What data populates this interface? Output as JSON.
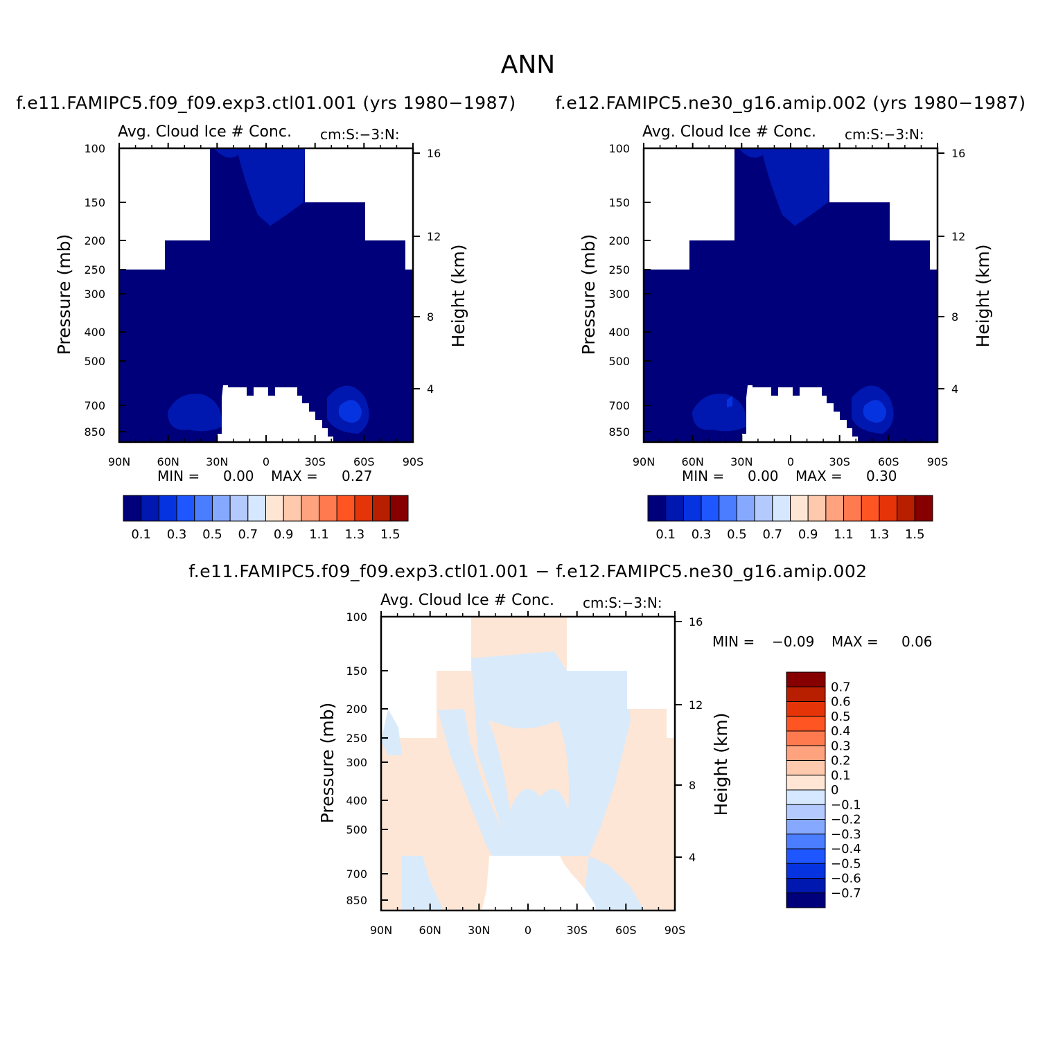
{
  "title": "ANN",
  "colors": {
    "white": "#ffffff",
    "blue_scale": [
      "#00007a",
      "#0018b0",
      "#0633e0",
      "#1e57ff",
      "#4a7dff",
      "#86a9ff",
      "#b4caff",
      "#d6e8ff"
    ],
    "red_scale": [
      "#ffe6d4",
      "#ffc9ad",
      "#ffa27e",
      "#ff7a4f",
      "#ff5523",
      "#e43408",
      "#b81e00",
      "#860000"
    ],
    "diff_pos": "#fde6d6",
    "diff_neg": "#d9eafb"
  },
  "chart_data": [
    {
      "type": "heatmap",
      "case": "f.e11.FAMIPC5.f09_f09.exp3.ctl01.001 (yrs 1980−1987)",
      "variable": "Avg. Cloud Ice # Conc.",
      "units": "cm:S:−3:N:",
      "ylabel": "Pressure (mb)",
      "ylabel_right": "Height (km)",
      "x_ticks": [
        "90N",
        "60N",
        "30N",
        "0",
        "30S",
        "60S",
        "90S"
      ],
      "y_ticks": [
        "100",
        "150",
        "200",
        "250",
        "300",
        "400",
        "500",
        "700",
        "850"
      ],
      "y_ticks_right": [
        "16",
        "12",
        "8",
        "4"
      ],
      "ylim": [
        1000,
        100
      ],
      "log_scale_y": true,
      "min_label": "MIN =",
      "min": "0.00",
      "max_label": "MAX =",
      "max": "0.27",
      "colorbar_labels": [
        "0.1",
        "0.3",
        "0.5",
        "0.7",
        "0.9",
        "1.1",
        "1.3",
        "1.5"
      ],
      "colorbar_orientation": "horizontal"
    },
    {
      "type": "heatmap",
      "case": "f.e12.FAMIPC5.ne30_g16.amip.002 (yrs 1980−1987)",
      "variable": "Avg. Cloud Ice # Conc.",
      "units": "cm:S:−3:N:",
      "ylabel": "Pressure (mb)",
      "ylabel_right": "Height (km)",
      "x_ticks": [
        "90N",
        "60N",
        "30N",
        "0",
        "30S",
        "60S",
        "90S"
      ],
      "y_ticks": [
        "100",
        "150",
        "200",
        "250",
        "300",
        "400",
        "500",
        "700",
        "850"
      ],
      "y_ticks_right": [
        "16",
        "12",
        "8",
        "4"
      ],
      "ylim": [
        1000,
        100
      ],
      "log_scale_y": true,
      "min_label": "MIN =",
      "min": "0.00",
      "max_label": "MAX =",
      "max": "0.30",
      "colorbar_labels": [
        "0.1",
        "0.3",
        "0.5",
        "0.7",
        "0.9",
        "1.1",
        "1.3",
        "1.5"
      ],
      "colorbar_orientation": "horizontal"
    },
    {
      "type": "heatmap",
      "case": "f.e11.FAMIPC5.f09_f09.exp3.ctl01.001 − f.e12.FAMIPC5.ne30_g16.amip.002",
      "variable": "Avg. Cloud Ice # Conc.",
      "units": "cm:S:−3:N:",
      "ylabel": "Pressure (mb)",
      "ylabel_right": "Height (km)",
      "x_ticks": [
        "90N",
        "60N",
        "30N",
        "0",
        "30S",
        "60S",
        "90S"
      ],
      "y_ticks": [
        "100",
        "150",
        "200",
        "250",
        "300",
        "400",
        "500",
        "700",
        "850"
      ],
      "y_ticks_right": [
        "16",
        "12",
        "8",
        "4"
      ],
      "ylim": [
        1000,
        100
      ],
      "log_scale_y": true,
      "min_label": "MIN =",
      "min": "−0.09",
      "max_label": "MAX =",
      "max": "0.06",
      "colorbar_labels": [
        "0.7",
        "0.6",
        "0.5",
        "0.4",
        "0.3",
        "0.2",
        "0.1",
        "0",
        "−0.1",
        "−0.2",
        "−0.3",
        "−0.4",
        "−0.5",
        "−0.6",
        "−0.7"
      ],
      "colorbar_orientation": "vertical"
    }
  ]
}
